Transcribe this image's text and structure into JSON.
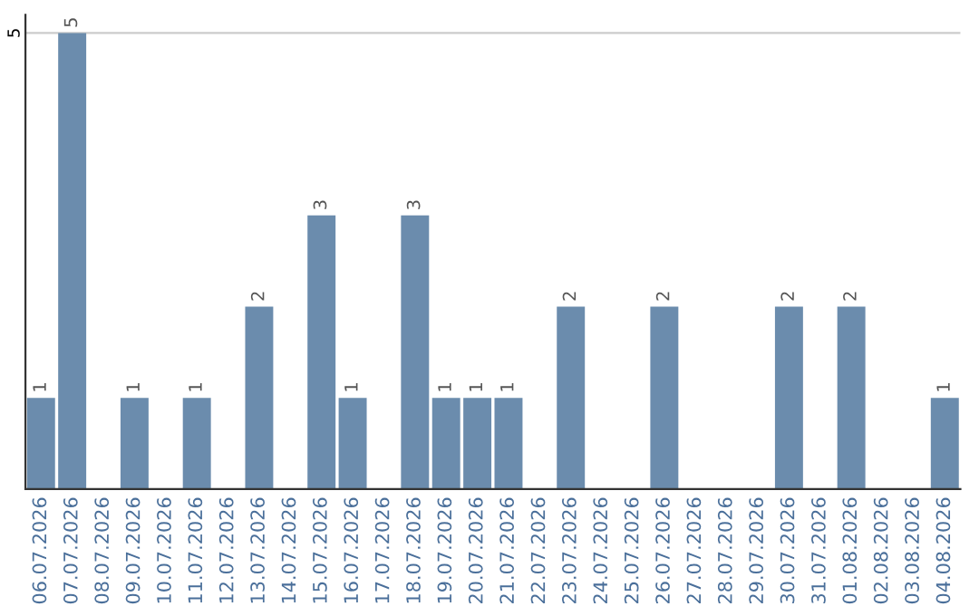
{
  "chart_data": {
    "type": "bar",
    "categories": [
      "06.07.2026",
      "07.07.2026",
      "08.07.2026",
      "09.07.2026",
      "10.07.2026",
      "11.07.2026",
      "12.07.2026",
      "13.07.2026",
      "14.07.2026",
      "15.07.2026",
      "16.07.2026",
      "17.07.2026",
      "18.07.2026",
      "19.07.2026",
      "20.07.2026",
      "21.07.2026",
      "22.07.2026",
      "23.07.2026",
      "24.07.2026",
      "25.07.2026",
      "26.07.2026",
      "27.07.2026",
      "28.07.2026",
      "29.07.2026",
      "30.07.2026",
      "31.07.2026",
      "01.08.2026",
      "02.08.2026",
      "03.08.2026",
      "04.08.2026"
    ],
    "values": [
      1,
      5,
      0,
      1,
      0,
      1,
      0,
      2,
      0,
      3,
      1,
      0,
      3,
      1,
      1,
      1,
      0,
      2,
      0,
      0,
      2,
      0,
      0,
      0,
      2,
      0,
      2,
      0,
      0,
      1
    ],
    "value_labels": [
      "1",
      "5",
      null,
      "1",
      null,
      "1",
      null,
      "2",
      null,
      "3",
      "1",
      null,
      "3",
      "1",
      "1",
      "1",
      null,
      "2",
      null,
      null,
      "2",
      null,
      null,
      null,
      "2",
      null,
      "2",
      null,
      null,
      "1"
    ],
    "color": "#6b8cad",
    "ylim": [
      0,
      5.2
    ],
    "yticks": [
      5
    ],
    "grid": "y"
  }
}
